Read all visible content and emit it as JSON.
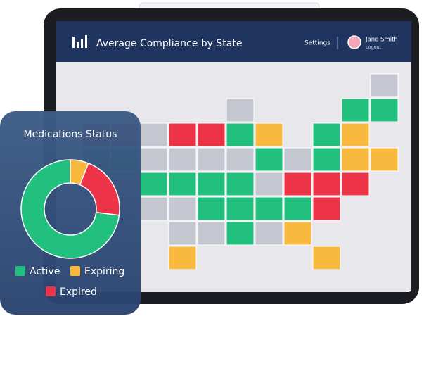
{
  "header": {
    "title": "Average Compliance by State",
    "settings": "Settings",
    "user_name": "Jane Smith",
    "logout": "Logout"
  },
  "chart_data": {
    "type": "donut",
    "title": "Medications Status",
    "categories": [
      "Active",
      "Expiring",
      "Expired"
    ],
    "values": [
      73,
      6,
      21
    ],
    "colors": [
      "#22c07f",
      "#f8b93e",
      "#ec3347"
    ]
  }
}
